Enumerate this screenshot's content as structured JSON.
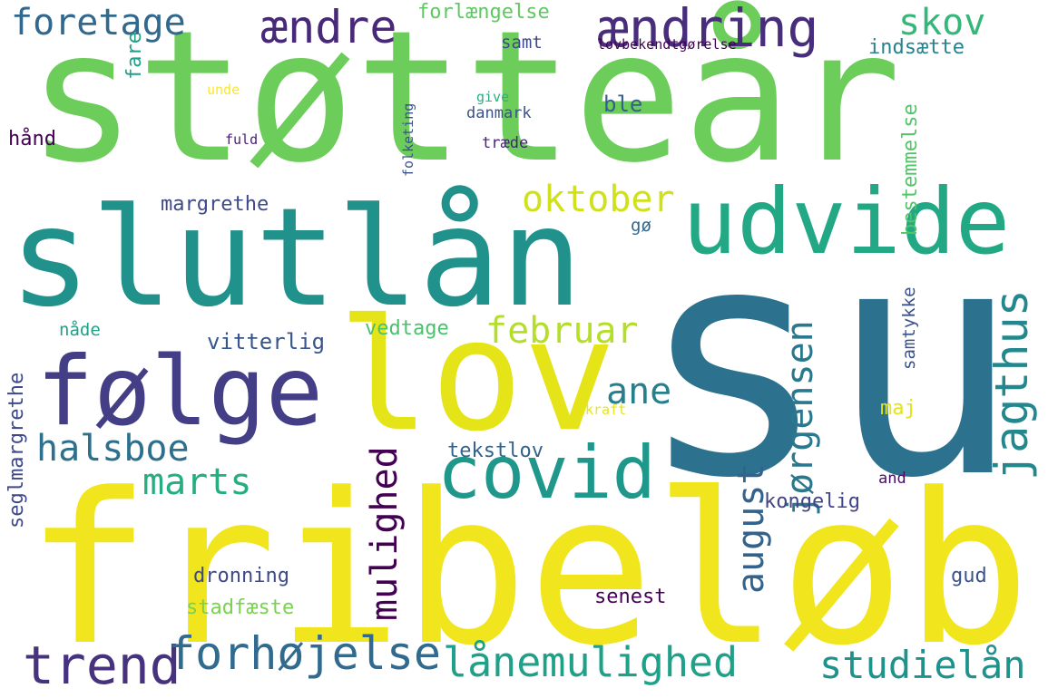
{
  "words": [
    {
      "text": "støtteår",
      "color": "#6ccd5a"
    },
    {
      "text": "su",
      "color": "#2c728e"
    },
    {
      "text": "fribeløb",
      "color": "#f1e51d"
    },
    {
      "text": "slutlån",
      "color": "#21918c"
    },
    {
      "text": "udvide",
      "color": "#22a884"
    },
    {
      "text": "lov",
      "color": "#e5e419"
    },
    {
      "text": "følge",
      "color": "#433e85"
    },
    {
      "text": "covid",
      "color": "#1f988b"
    },
    {
      "text": "ændring",
      "color": "#472d7b"
    },
    {
      "text": "ændre",
      "color": "#482878"
    },
    {
      "text": "foretage",
      "color": "#31688e"
    },
    {
      "text": "skov",
      "color": "#35b779"
    },
    {
      "text": "forlængelse",
      "color": "#5ec962"
    },
    {
      "text": "samt",
      "color": "#3e4989"
    },
    {
      "text": "lovbekendtgørelse",
      "color": "#440154"
    },
    {
      "text": "indsætte",
      "color": "#26828e"
    },
    {
      "text": "fare",
      "color": "#1fa187"
    },
    {
      "text": "unde",
      "color": "#fde725"
    },
    {
      "text": "give",
      "color": "#29af7f"
    },
    {
      "text": "danmark",
      "color": "#3b528b"
    },
    {
      "text": "ble",
      "color": "#355f8d"
    },
    {
      "text": "folketing",
      "color": "#3b528b"
    },
    {
      "text": "hånd",
      "color": "#440154"
    },
    {
      "text": "fuld",
      "color": "#482173"
    },
    {
      "text": "træde",
      "color": "#482475"
    },
    {
      "text": "bestemmelse",
      "color": "#52c569"
    },
    {
      "text": "oktober",
      "color": "#d0e11c"
    },
    {
      "text": "margrethe",
      "color": "#3e4989"
    },
    {
      "text": "gø",
      "color": "#31688e"
    },
    {
      "text": "februar",
      "color": "#b5de2b"
    },
    {
      "text": "ane",
      "color": "#277f8e"
    },
    {
      "text": "mulighed",
      "color": "#440154"
    },
    {
      "text": "jørgensen",
      "color": "#2a788e"
    },
    {
      "text": "jagthus",
      "color": "#23888e"
    },
    {
      "text": "samtykke",
      "color": "#3b528b"
    },
    {
      "text": "halsboe",
      "color": "#2d708e"
    },
    {
      "text": "marts",
      "color": "#27ad81"
    },
    {
      "text": "nåde",
      "color": "#1fa187"
    },
    {
      "text": "vitterlig",
      "color": "#39568c"
    },
    {
      "text": "vedtage",
      "color": "#4ac16d"
    },
    {
      "text": "maj",
      "color": "#e2e418"
    },
    {
      "text": "kraft",
      "color": "#e7e419"
    },
    {
      "text": "seglmargrethe",
      "color": "#3e4989"
    },
    {
      "text": "tekstlov",
      "color": "#33638d"
    },
    {
      "text": "august",
      "color": "#33638d"
    },
    {
      "text": "and",
      "color": "#471063"
    },
    {
      "text": "kongelig",
      "color": "#414487"
    },
    {
      "text": "dronning",
      "color": "#3e4989"
    },
    {
      "text": "gud",
      "color": "#3b528b"
    },
    {
      "text": "stadfæste",
      "color": "#7ad151"
    },
    {
      "text": "senest",
      "color": "#440154"
    },
    {
      "text": "trend",
      "color": "#46327e"
    },
    {
      "text": "forhøjelse",
      "color": "#306a8e"
    },
    {
      "text": "lånemulighed",
      "color": "#1fa088"
    },
    {
      "text": "studielån",
      "color": "#20928c"
    }
  ]
}
